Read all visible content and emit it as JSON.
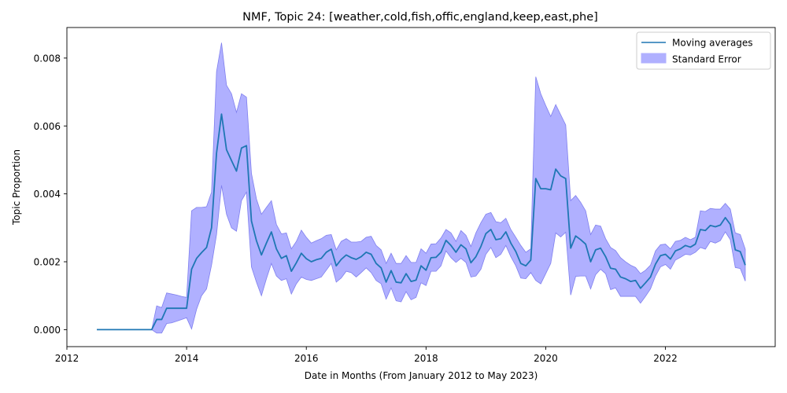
{
  "chart_data": {
    "type": "line",
    "title": "NMF, Topic 24: [weather,cold,fish,offic,england,keep,east,phe]",
    "xlabel": "Date in Months (From January 2012 to May 2023)",
    "ylabel": "Topic Proportion",
    "xlim": [
      "2012-01",
      "2023-11"
    ],
    "ylim": [
      -0.0005,
      0.0089
    ],
    "xticks": [
      {
        "label": "2012",
        "value": "2012-01"
      },
      {
        "label": "2014",
        "value": "2014-01"
      },
      {
        "label": "2016",
        "value": "2016-01"
      },
      {
        "label": "2018",
        "value": "2018-01"
      },
      {
        "label": "2020",
        "value": "2020-01"
      },
      {
        "label": "2022",
        "value": "2022-01"
      }
    ],
    "yticks": [
      {
        "label": "0.000",
        "value": 0.0
      },
      {
        "label": "0.002",
        "value": 0.002
      },
      {
        "label": "0.004",
        "value": 0.004
      },
      {
        "label": "0.006",
        "value": 0.006
      },
      {
        "label": "0.008",
        "value": 0.008
      }
    ],
    "grid": false,
    "legend": {
      "placement": "top-right",
      "line_label": "Moving averages",
      "band_label": "Standard Error"
    },
    "colors": {
      "line": "#1f77b4",
      "band": "#b0b0ff",
      "band_edge": "#7f7fee"
    },
    "x": [
      "2012-07",
      "2012-08",
      "2012-09",
      "2012-10",
      "2012-11",
      "2012-12",
      "2013-01",
      "2013-02",
      "2013-03",
      "2013-04",
      "2013-05",
      "2013-06",
      "2013-07",
      "2013-08",
      "2013-09",
      "2013-10",
      "2013-11",
      "2013-12",
      "2014-01",
      "2014-02",
      "2014-03",
      "2014-04",
      "2014-05",
      "2014-06",
      "2014-07",
      "2014-08",
      "2014-09",
      "2014-10",
      "2014-11",
      "2014-12",
      "2015-01",
      "2015-02",
      "2015-03",
      "2015-04",
      "2015-05",
      "2015-06",
      "2015-07",
      "2015-08",
      "2015-09",
      "2015-10",
      "2015-11",
      "2015-12",
      "2016-01",
      "2016-02",
      "2016-03",
      "2016-04",
      "2016-05",
      "2016-06",
      "2016-07",
      "2016-08",
      "2016-09",
      "2016-10",
      "2016-11",
      "2016-12",
      "2017-01",
      "2017-02",
      "2017-03",
      "2017-04",
      "2017-05",
      "2017-06",
      "2017-07",
      "2017-08",
      "2017-09",
      "2017-10",
      "2017-11",
      "2017-12",
      "2018-01",
      "2018-02",
      "2018-03",
      "2018-04",
      "2018-05",
      "2018-06",
      "2018-07",
      "2018-08",
      "2018-09",
      "2018-10",
      "2018-11",
      "2018-12",
      "2019-01",
      "2019-02",
      "2019-03",
      "2019-04",
      "2019-05",
      "2019-06",
      "2019-07",
      "2019-08",
      "2019-09",
      "2019-10",
      "2019-11",
      "2019-12",
      "2020-01",
      "2020-02",
      "2020-03",
      "2020-04",
      "2020-05",
      "2020-06",
      "2020-07",
      "2020-08",
      "2020-09",
      "2020-10",
      "2020-11",
      "2020-12",
      "2021-01",
      "2021-02",
      "2021-03",
      "2021-04",
      "2021-05",
      "2021-06",
      "2021-07",
      "2021-08",
      "2021-09",
      "2021-10",
      "2021-11",
      "2021-12",
      "2022-01",
      "2022-02",
      "2022-03",
      "2022-04",
      "2022-05",
      "2022-06",
      "2022-07",
      "2022-08",
      "2022-09",
      "2022-10",
      "2022-11",
      "2022-12",
      "2023-01",
      "2023-02",
      "2023-03",
      "2023-04",
      "2023-05"
    ],
    "series": [
      {
        "name": "Moving averages",
        "values": [
          0,
          0,
          0,
          0,
          0,
          0,
          0,
          0,
          0,
          0,
          0,
          0,
          0.0003,
          0.0003,
          0.00063,
          0.00063,
          0.00063,
          0.00063,
          0.00063,
          0.00178,
          0.0021,
          0.00227,
          0.00242,
          0.003,
          0.0052,
          0.00635,
          0.0053,
          0.00498,
          0.00467,
          0.00535,
          0.00542,
          0.0032,
          0.00262,
          0.0022,
          0.00255,
          0.00288,
          0.00238,
          0.0021,
          0.00218,
          0.00172,
          0.00197,
          0.00225,
          0.00209,
          0.002,
          0.00206,
          0.0021,
          0.00228,
          0.00237,
          0.00188,
          0.00207,
          0.0022,
          0.00212,
          0.00207,
          0.00215,
          0.00228,
          0.00222,
          0.00195,
          0.00182,
          0.0014,
          0.00174,
          0.0014,
          0.00138,
          0.00165,
          0.00142,
          0.00146,
          0.00188,
          0.00175,
          0.00212,
          0.00213,
          0.00228,
          0.00263,
          0.00248,
          0.00228,
          0.0025,
          0.00238,
          0.00197,
          0.00215,
          0.00245,
          0.00283,
          0.00295,
          0.00265,
          0.00268,
          0.00288,
          0.00255,
          0.0023,
          0.00195,
          0.00188,
          0.00205,
          0.00445,
          0.00415,
          0.00415,
          0.00412,
          0.00473,
          0.00453,
          0.00445,
          0.0024,
          0.00276,
          0.00265,
          0.00252,
          0.002,
          0.00235,
          0.0024,
          0.00215,
          0.00181,
          0.00178,
          0.00155,
          0.0015,
          0.00142,
          0.00145,
          0.00122,
          0.00138,
          0.00155,
          0.00193,
          0.00218,
          0.00222,
          0.00208,
          0.00232,
          0.00238,
          0.00248,
          0.00243,
          0.00252,
          0.00295,
          0.00292,
          0.00307,
          0.00303,
          0.00308,
          0.0033,
          0.0031,
          0.00235,
          0.0023,
          0.0019
        ]
      }
    ],
    "band": {
      "name": "Standard Error",
      "upper": [
        0,
        0,
        0,
        0,
        0,
        0,
        0,
        0,
        0,
        0,
        0,
        0,
        0.0007,
        0.00065,
        0.00108,
        0.00105,
        0.00102,
        0.00098,
        0.00095,
        0.0035,
        0.0036,
        0.0036,
        0.00362,
        0.00405,
        0.0076,
        0.00845,
        0.0072,
        0.00695,
        0.0064,
        0.00695,
        0.00685,
        0.0046,
        0.00385,
        0.0034,
        0.0036,
        0.0038,
        0.0031,
        0.00282,
        0.00285,
        0.00238,
        0.0026,
        0.00293,
        0.00272,
        0.00255,
        0.00262,
        0.00268,
        0.00278,
        0.0028,
        0.00235,
        0.0026,
        0.00268,
        0.00258,
        0.00258,
        0.0026,
        0.00272,
        0.00275,
        0.00248,
        0.00235,
        0.00195,
        0.00225,
        0.00195,
        0.00195,
        0.00218,
        0.00198,
        0.00198,
        0.00238,
        0.00225,
        0.00252,
        0.00253,
        0.0027,
        0.00295,
        0.00285,
        0.0026,
        0.00292,
        0.00278,
        0.00245,
        0.00285,
        0.00315,
        0.0034,
        0.00345,
        0.00318,
        0.00315,
        0.00328,
        0.00295,
        0.00272,
        0.00248,
        0.00228,
        0.00238,
        0.00745,
        0.00695,
        0.0066,
        0.00628,
        0.00663,
        0.00633,
        0.00603,
        0.0038,
        0.00395,
        0.00375,
        0.0035,
        0.0028,
        0.00308,
        0.00305,
        0.00268,
        0.00242,
        0.00233,
        0.00212,
        0.002,
        0.0019,
        0.00183,
        0.00165,
        0.00175,
        0.0019,
        0.00232,
        0.0025,
        0.00252,
        0.00238,
        0.0026,
        0.00263,
        0.00272,
        0.00265,
        0.00272,
        0.0035,
        0.00348,
        0.00357,
        0.00355,
        0.00355,
        0.00372,
        0.00355,
        0.00285,
        0.0028,
        0.00237
      ],
      "lower": [
        0,
        0,
        0,
        0,
        0,
        0,
        0,
        0,
        0,
        0,
        0,
        0,
        -0.0001,
        -0.0001,
        0.00018,
        0.0002,
        0.00025,
        0.0003,
        0.00035,
        2e-05,
        0.0006,
        0.001,
        0.0012,
        0.0019,
        0.0028,
        0.00425,
        0.0034,
        0.003,
        0.0029,
        0.0038,
        0.00405,
        0.00185,
        0.0014,
        0.001,
        0.0015,
        0.00195,
        0.00158,
        0.00145,
        0.0015,
        0.00105,
        0.00135,
        0.00155,
        0.00148,
        0.00145,
        0.0015,
        0.00155,
        0.00175,
        0.00195,
        0.0014,
        0.00152,
        0.00172,
        0.00168,
        0.00155,
        0.00168,
        0.00182,
        0.00168,
        0.00145,
        0.00135,
        0.0009,
        0.00123,
        0.00085,
        0.00082,
        0.00112,
        0.00088,
        0.00095,
        0.00138,
        0.0013,
        0.00172,
        0.00172,
        0.00188,
        0.00232,
        0.00212,
        0.00198,
        0.0021,
        0.00198,
        0.00155,
        0.00158,
        0.00178,
        0.00222,
        0.00242,
        0.00212,
        0.00222,
        0.00248,
        0.00215,
        0.00188,
        0.00152,
        0.0015,
        0.00168,
        0.00145,
        0.00135,
        0.00165,
        0.00195,
        0.00285,
        0.00273,
        0.00287,
        0.00102,
        0.00157,
        0.00158,
        0.00158,
        0.0012,
        0.00162,
        0.00178,
        0.00165,
        0.00118,
        0.00123,
        0.00098,
        0.00098,
        0.00098,
        0.00098,
        0.00078,
        0.00098,
        0.0012,
        0.00158,
        0.00185,
        0.00192,
        0.00178,
        0.00205,
        0.00213,
        0.00222,
        0.0022,
        0.00228,
        0.00242,
        0.00237,
        0.0026,
        0.00255,
        0.00262,
        0.00288,
        0.00265,
        0.00183,
        0.0018,
        0.00143
      ]
    }
  }
}
